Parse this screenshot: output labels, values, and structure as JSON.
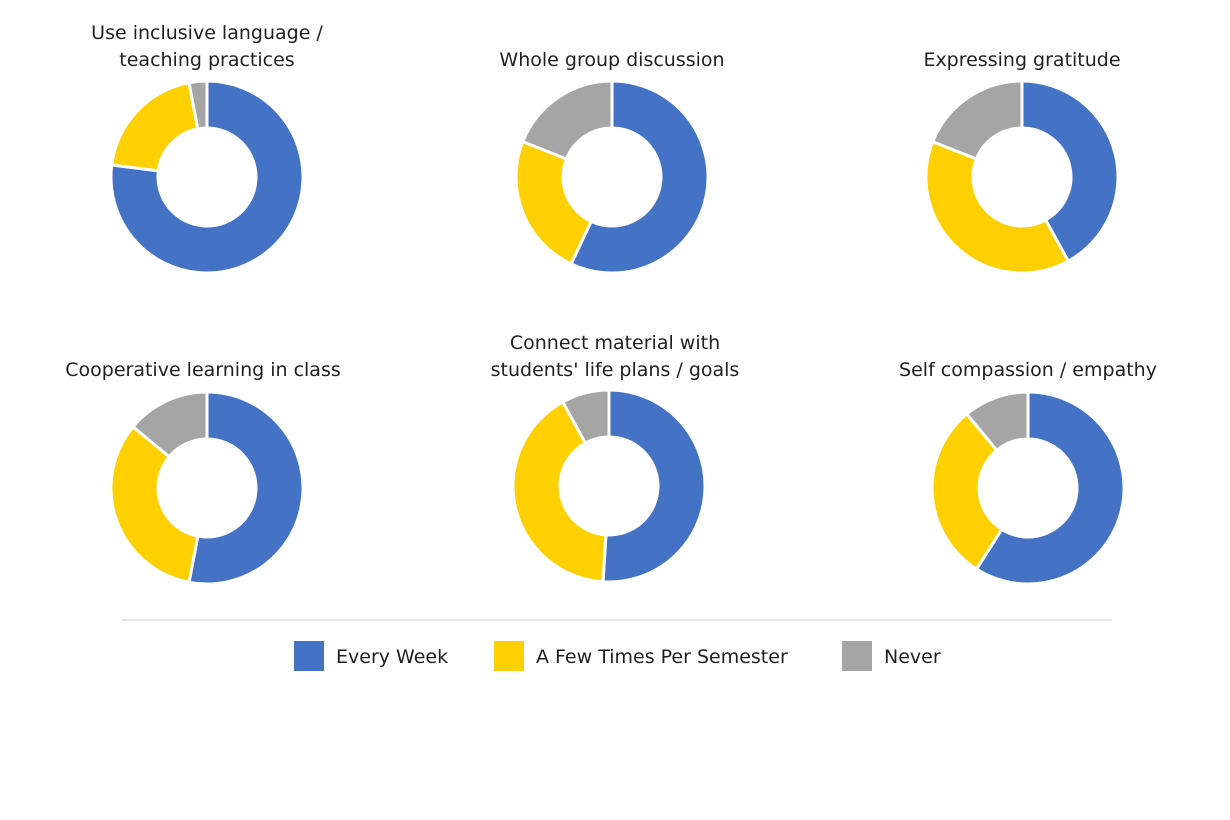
{
  "chart_data": {
    "type": "pie",
    "series_names": [
      "Every Week",
      "A Few Times Per Semester",
      "Never"
    ],
    "colors": {
      "Every Week": "#4472C4",
      "A Few Times Per Semester": "#FFD000",
      "Never": "#A5A5A5"
    },
    "charts": [
      {
        "title_lines": [
          "Use inclusive language /",
          "teaching practices"
        ],
        "values": [
          77,
          20,
          3
        ]
      },
      {
        "title_lines": [
          "Whole group discussion"
        ],
        "values": [
          57,
          24,
          19
        ]
      },
      {
        "title_lines": [
          "Expressing gratitude"
        ],
        "values": [
          42,
          39,
          19
        ]
      },
      {
        "title_lines": [
          "Cooperative learning in class"
        ],
        "values": [
          53,
          33,
          14
        ]
      },
      {
        "title_lines": [
          "Connect material with",
          "students' life plans / goals"
        ],
        "values": [
          51,
          41,
          8
        ]
      },
      {
        "title_lines": [
          "Self compassion / empathy"
        ],
        "values": [
          59,
          30,
          11
        ]
      }
    ],
    "legend": {
      "position": "bottom",
      "items": [
        "Every Week",
        "A Few Times Per Semester",
        "Never"
      ]
    }
  }
}
